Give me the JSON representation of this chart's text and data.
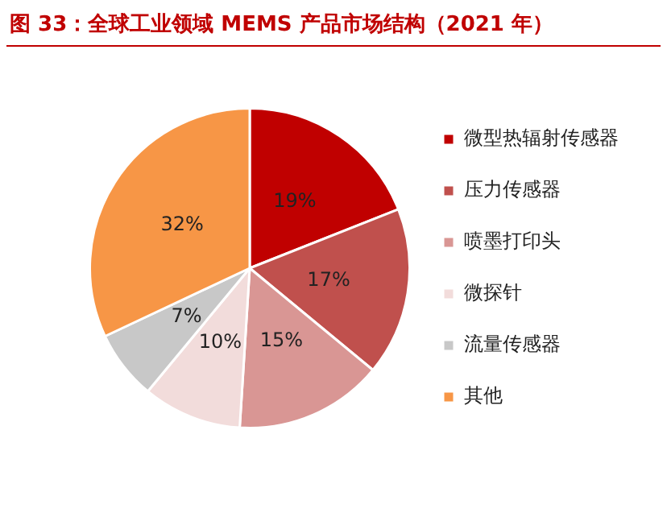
{
  "chart_data": {
    "type": "pie",
    "title": "图 33：全球工业领域 MEMS 产品市场结构（2021 年）",
    "categories": [
      "微型热辐射传感器",
      "压力传感器",
      "喷墨打印头",
      "微探针",
      "流量传感器",
      "其他"
    ],
    "values": [
      19,
      17,
      15,
      10,
      7,
      32
    ],
    "colors": [
      "#c00000",
      "#c0504d",
      "#d99694",
      "#f2dcdb",
      "#c8c8c8",
      "#f79646"
    ],
    "value_labels": [
      "19%",
      "17%",
      "15%",
      "10%",
      "7%",
      "32%"
    ],
    "legend": "right"
  }
}
